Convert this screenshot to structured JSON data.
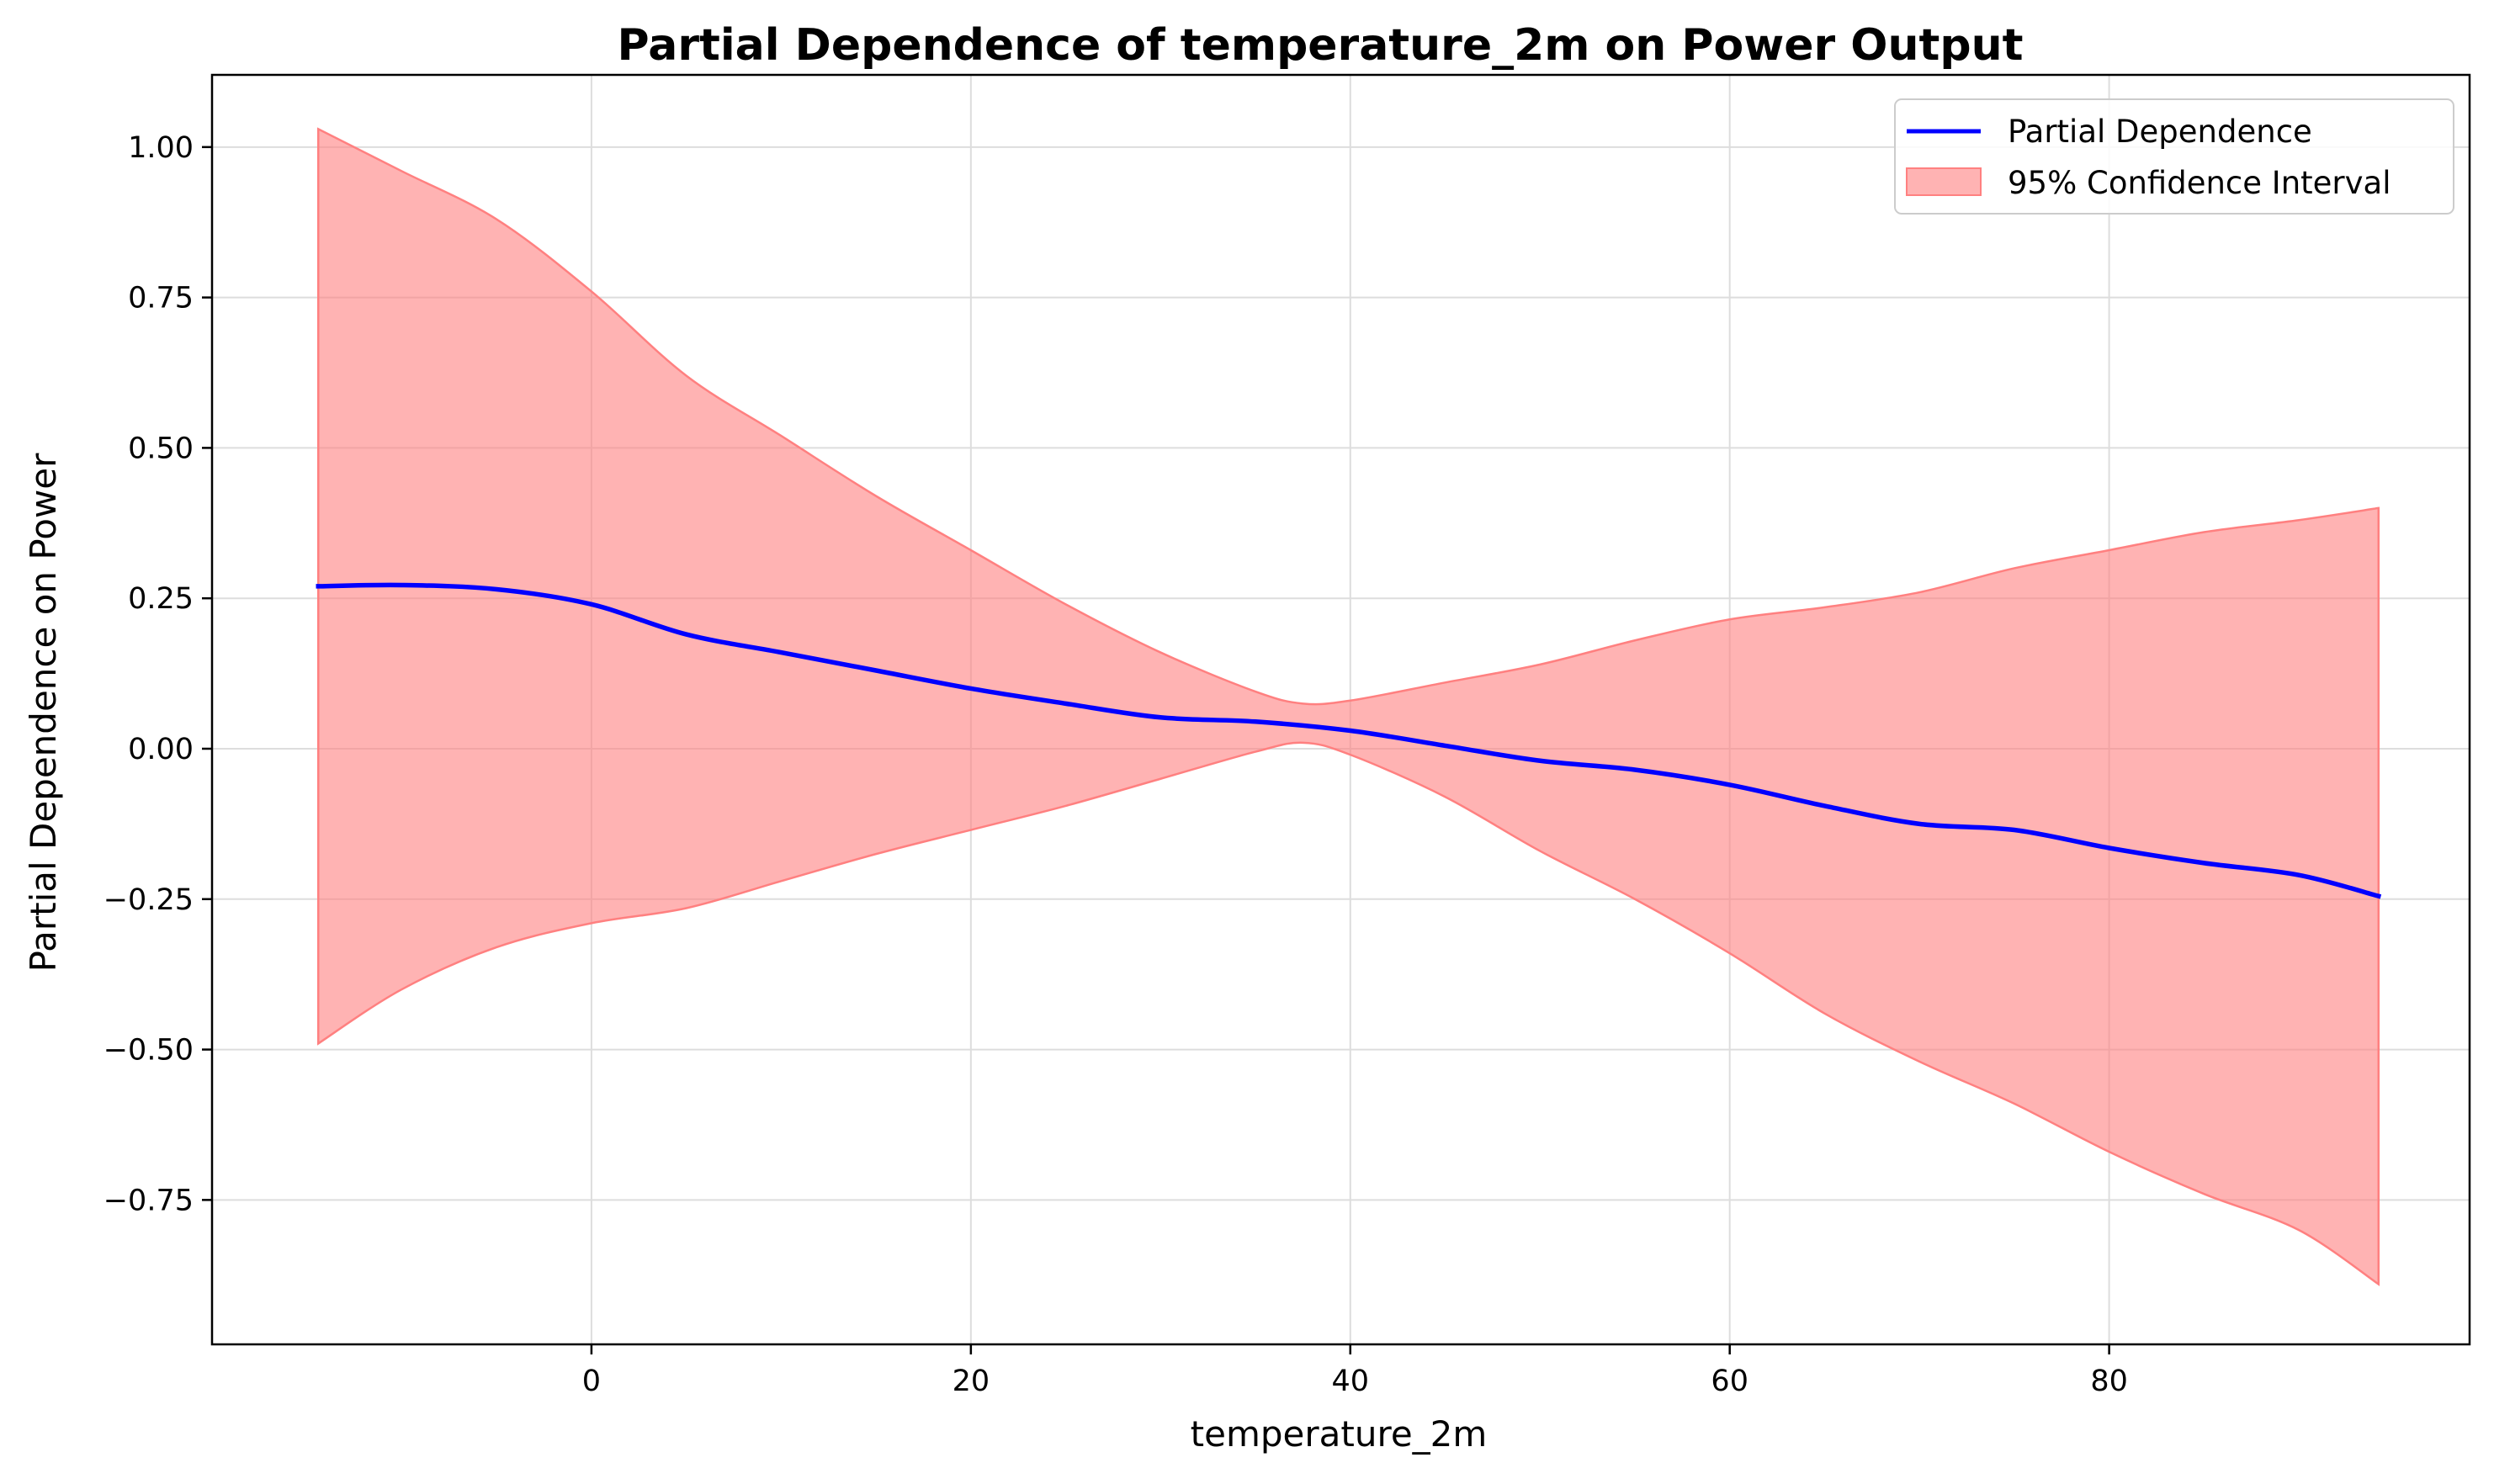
{
  "chart_data": {
    "type": "line",
    "title": "Partial Dependence of temperature_2m on Power Output",
    "xlabel": "temperature_2m",
    "ylabel": "Partial Dependence on Power",
    "xlim": [
      -20,
      99
    ],
    "ylim": [
      -0.99,
      1.12
    ],
    "x_ticks": [
      0,
      20,
      40,
      60,
      80
    ],
    "x_tick_labels": [
      "0",
      "20",
      "40",
      "60",
      "80"
    ],
    "y_ticks": [
      -0.75,
      -0.5,
      -0.25,
      0.0,
      0.25,
      0.5,
      0.75,
      1.0
    ],
    "y_tick_labels": [
      "−0.75",
      "−0.50",
      "−0.25",
      "0.00",
      "0.25",
      "0.50",
      "0.75",
      "1.00"
    ],
    "grid": true,
    "legend_position": "top-right",
    "series": [
      {
        "name": "Partial Dependence",
        "kind": "line",
        "color": "#0000ff",
        "x": [
          -14.4,
          -10,
          -5,
          0,
          5,
          10,
          15,
          20,
          25,
          30,
          35,
          40,
          45,
          50,
          55,
          60,
          65,
          70,
          75,
          80,
          85,
          90,
          94.2
        ],
        "y": [
          0.27,
          0.272,
          0.265,
          0.24,
          0.19,
          0.16,
          0.13,
          0.1,
          0.075,
          0.052,
          0.045,
          0.03,
          0.005,
          -0.02,
          -0.035,
          -0.06,
          -0.095,
          -0.125,
          -0.135,
          -0.165,
          -0.19,
          -0.21,
          -0.245
        ]
      },
      {
        "name": "95% Confidence Interval",
        "kind": "band",
        "fill_color": "#ff8080",
        "fill_opacity": 0.6,
        "edge_color": "#ff8080",
        "x": [
          -14.4,
          -10,
          -5,
          0,
          5,
          10,
          15,
          20,
          25,
          30,
          35,
          37.5,
          40,
          45,
          50,
          55,
          60,
          65,
          70,
          75,
          80,
          85,
          90,
          94.2
        ],
        "upper": [
          1.03,
          0.96,
          0.88,
          0.76,
          0.62,
          0.52,
          0.42,
          0.33,
          0.24,
          0.16,
          0.095,
          0.075,
          0.08,
          0.11,
          0.14,
          0.18,
          0.215,
          0.235,
          0.26,
          0.3,
          0.33,
          0.36,
          0.38,
          0.4
        ],
        "lower": [
          -0.49,
          -0.4,
          -0.33,
          -0.29,
          -0.265,
          -0.22,
          -0.175,
          -0.135,
          -0.095,
          -0.05,
          -0.005,
          0.01,
          -0.01,
          -0.08,
          -0.17,
          -0.25,
          -0.34,
          -0.44,
          -0.52,
          -0.59,
          -0.67,
          -0.74,
          -0.8,
          -0.89
        ]
      }
    ]
  }
}
